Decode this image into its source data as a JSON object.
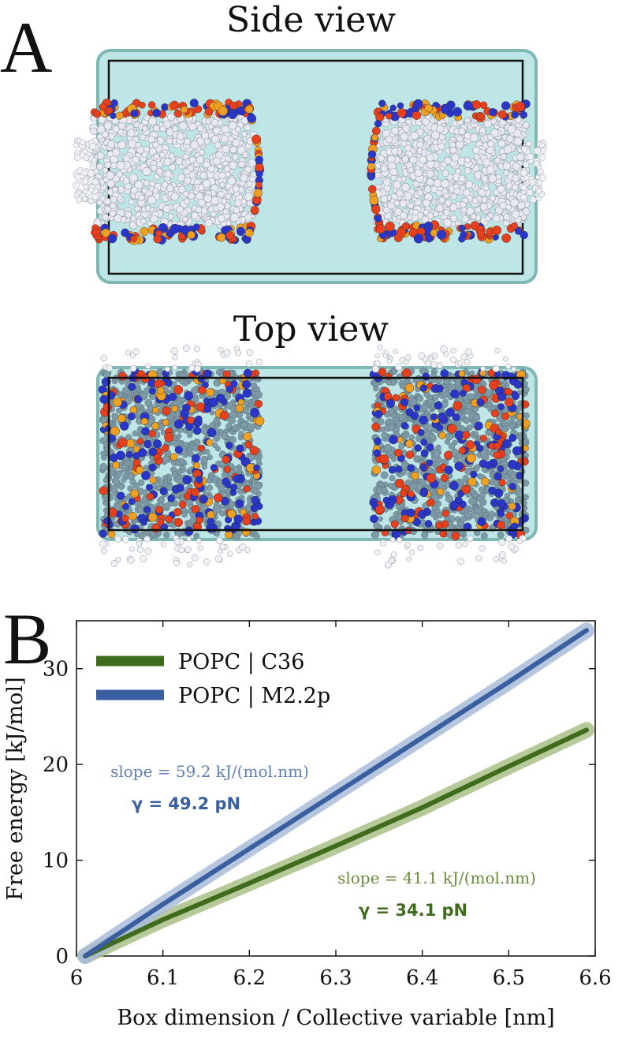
{
  "panel_a": {
    "letter": "A",
    "side_view_title": "Side view",
    "top_view_title": "Top view"
  },
  "panel_b": {
    "letter": "B"
  },
  "colors": {
    "water": "#bfe6e6",
    "water_edge": "#7fb7b5",
    "lipid_tail_side": "#e8eaf0",
    "lipid_tail_top": "#7d9aa6",
    "nitrogen": "#2a36c8",
    "oxygen": "#e8401c",
    "phosphorus": "#f0a020",
    "c36_line": "#3f6b1c",
    "c36_band": "#a9bf86",
    "m22p_line": "#3a5fa0",
    "m22p_band": "#a9bcd9"
  },
  "chart_data": {
    "type": "line",
    "xlabel": "Box dimension / Collective variable [nm]",
    "ylabel": "Free energy [kJ/mol]",
    "xlim": [
      6.0,
      6.6
    ],
    "ylim": [
      0,
      35
    ],
    "xticks": [
      "6",
      "6.1",
      "6.2",
      "6.3",
      "6.4",
      "6.5",
      "6.6"
    ],
    "yticks": [
      "0",
      "10",
      "20",
      "30"
    ],
    "legend_position": "top-left",
    "series": [
      {
        "name": "POPC | C36",
        "color": "#3f6b1c",
        "x": [
          6.01,
          6.1,
          6.2,
          6.3,
          6.4,
          6.5,
          6.59
        ],
        "y": [
          0.0,
          3.8,
          7.6,
          11.5,
          15.5,
          19.8,
          23.6
        ]
      },
      {
        "name": "POPC | M2.2p",
        "color": "#3a5fa0",
        "x": [
          6.01,
          6.1,
          6.2,
          6.3,
          6.4,
          6.5,
          6.59
        ],
        "y": [
          0.0,
          5.4,
          11.2,
          17.0,
          22.8,
          28.6,
          34.0
        ]
      }
    ],
    "annotations": [
      {
        "series": "POPC | M2.2p",
        "slope": "slope = 59.2 kJ/(mol.nm)",
        "gamma": "γ = 49.2 pN"
      },
      {
        "series": "POPC | C36",
        "slope": "slope = 41.1 kJ/(mol.nm)",
        "gamma": "γ = 34.1 pN"
      }
    ]
  }
}
